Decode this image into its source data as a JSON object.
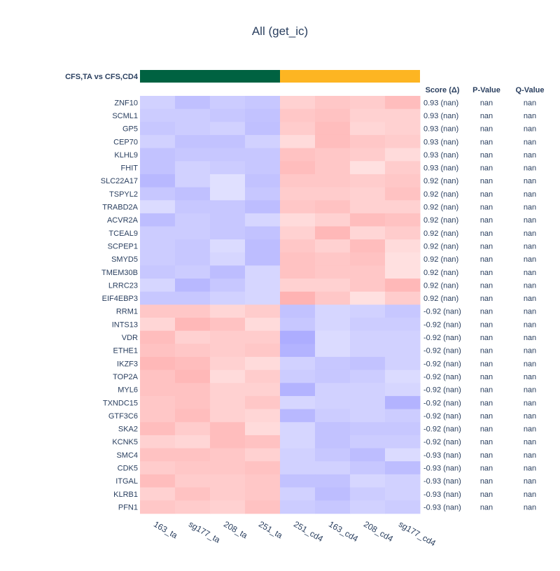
{
  "chart_data": {
    "type": "heatmap",
    "title": "All (get_ic)",
    "group_label": "CFS,TA vs CFS,CD4",
    "groups": [
      {
        "name": "CFS,TA",
        "color": "#006241",
        "columns": 4
      },
      {
        "name": "CFS,CD4",
        "color": "#fdb522",
        "columns": 4
      }
    ],
    "columns": [
      "163_ta",
      "sg177_ta",
      "208_ta",
      "251_ta",
      "251_cd4",
      "163_cd4",
      "208_cd4",
      "sg177_cd4"
    ],
    "rows": [
      "ZNF10",
      "SCML1",
      "GP5",
      "CEP70",
      "KLHL9",
      "FHIT",
      "SLC22A17",
      "TSPYL2",
      "TRABD2A",
      "ACVR2A",
      "TCEAL9",
      "SCPEP1",
      "SMYD5",
      "TMEM30B",
      "LRRC23",
      "EIF4EBP3",
      "RRM1",
      "INTS13",
      "VDR",
      "ETHE1",
      "IKZF3",
      "TOP2A",
      "MYL6",
      "TXNDC15",
      "GTF3C6",
      "SKA2",
      "KCNK5",
      "SMC4",
      "CDK5",
      "ITGAL",
      "KLRB1",
      "PFN1"
    ],
    "values": [
      [
        -0.45,
        -0.62,
        -0.5,
        -0.55,
        0.45,
        0.55,
        0.5,
        0.65
      ],
      [
        -0.5,
        -0.5,
        -0.55,
        -0.6,
        0.55,
        0.6,
        0.45,
        0.45
      ],
      [
        -0.55,
        -0.5,
        -0.45,
        -0.62,
        0.5,
        0.65,
        0.4,
        0.45
      ],
      [
        -0.45,
        -0.6,
        -0.6,
        -0.45,
        0.35,
        0.65,
        0.55,
        0.5
      ],
      [
        -0.6,
        -0.55,
        -0.55,
        -0.55,
        0.6,
        0.55,
        0.5,
        0.35
      ],
      [
        -0.6,
        -0.45,
        -0.5,
        -0.55,
        0.65,
        0.55,
        0.3,
        0.5
      ],
      [
        -0.7,
        -0.45,
        -0.3,
        -0.6,
        0.55,
        0.55,
        0.5,
        0.55
      ],
      [
        -0.55,
        -0.62,
        -0.3,
        -0.55,
        0.5,
        0.5,
        0.45,
        0.6
      ],
      [
        -0.35,
        -0.55,
        -0.55,
        -0.65,
        0.55,
        0.6,
        0.45,
        0.45
      ],
      [
        -0.65,
        -0.5,
        -0.55,
        -0.4,
        0.35,
        0.45,
        0.65,
        0.6
      ],
      [
        -0.5,
        -0.5,
        -0.55,
        -0.6,
        0.45,
        0.7,
        0.4,
        0.5
      ],
      [
        -0.5,
        -0.55,
        -0.35,
        -0.65,
        0.55,
        0.45,
        0.65,
        0.35
      ],
      [
        -0.5,
        -0.55,
        -0.4,
        -0.65,
        0.6,
        0.55,
        0.6,
        0.3
      ],
      [
        -0.55,
        -0.5,
        -0.65,
        -0.4,
        0.6,
        0.55,
        0.55,
        0.3
      ],
      [
        -0.4,
        -0.7,
        -0.55,
        -0.4,
        0.45,
        0.45,
        0.55,
        0.7
      ],
      [
        -0.55,
        -0.55,
        -0.45,
        -0.4,
        0.75,
        0.55,
        0.3,
        0.5
      ],
      [
        0.55,
        0.55,
        0.4,
        0.5,
        -0.6,
        -0.4,
        -0.45,
        -0.55
      ],
      [
        0.4,
        0.7,
        0.6,
        0.35,
        -0.55,
        -0.4,
        -0.5,
        -0.5
      ],
      [
        0.65,
        0.45,
        0.5,
        0.5,
        -0.8,
        -0.35,
        -0.45,
        -0.45
      ],
      [
        0.6,
        0.55,
        0.5,
        0.55,
        -0.75,
        -0.35,
        -0.45,
        -0.45
      ],
      [
        0.7,
        0.65,
        0.45,
        0.35,
        -0.45,
        -0.55,
        -0.6,
        -0.45
      ],
      [
        0.6,
        0.7,
        0.35,
        0.5,
        -0.5,
        -0.55,
        -0.5,
        -0.35
      ],
      [
        0.6,
        0.6,
        0.45,
        0.45,
        -0.75,
        -0.45,
        -0.45,
        -0.4
      ],
      [
        0.55,
        0.6,
        0.45,
        0.55,
        -0.4,
        -0.45,
        -0.45,
        -0.75
      ],
      [
        0.55,
        0.65,
        0.45,
        0.4,
        -0.7,
        -0.5,
        -0.45,
        -0.5
      ],
      [
        0.65,
        0.5,
        0.65,
        0.35,
        -0.4,
        -0.6,
        -0.55,
        -0.55
      ],
      [
        0.45,
        0.4,
        0.65,
        0.6,
        -0.4,
        -0.6,
        -0.5,
        -0.5
      ],
      [
        0.6,
        0.6,
        0.55,
        0.45,
        -0.45,
        -0.55,
        -0.65,
        -0.35
      ],
      [
        0.5,
        0.55,
        0.55,
        0.6,
        -0.45,
        -0.45,
        -0.55,
        -0.65
      ],
      [
        0.65,
        0.5,
        0.5,
        0.55,
        -0.6,
        -0.6,
        -0.4,
        -0.45
      ],
      [
        0.45,
        0.6,
        0.5,
        0.55,
        -0.45,
        -0.65,
        -0.5,
        -0.45
      ],
      [
        0.55,
        0.5,
        0.45,
        0.6,
        -0.5,
        -0.55,
        -0.45,
        -0.5
      ]
    ],
    "table": {
      "headers": [
        "Score (Δ)",
        "P-Value",
        "Q-Value"
      ],
      "scores": [
        "0.93 (nan)",
        "0.93 (nan)",
        "0.93 (nan)",
        "0.93 (nan)",
        "0.93 (nan)",
        "0.93 (nan)",
        "0.92 (nan)",
        "0.92 (nan)",
        "0.92 (nan)",
        "0.92 (nan)",
        "0.92 (nan)",
        "0.92 (nan)",
        "0.92 (nan)",
        "0.92 (nan)",
        "0.92 (nan)",
        "0.92 (nan)",
        "-0.92 (nan)",
        "-0.92 (nan)",
        "-0.92 (nan)",
        "-0.92 (nan)",
        "-0.92 (nan)",
        "-0.92 (nan)",
        "-0.92 (nan)",
        "-0.92 (nan)",
        "-0.92 (nan)",
        "-0.92 (nan)",
        "-0.92 (nan)",
        "-0.93 (nan)",
        "-0.93 (nan)",
        "-0.93 (nan)",
        "-0.93 (nan)",
        "-0.93 (nan)"
      ],
      "pvalue": "nan",
      "qvalue": "nan"
    },
    "colorscale": {
      "negative": "#9999ff",
      "neutral": "#ffffff",
      "positive": "#ff9999"
    }
  }
}
